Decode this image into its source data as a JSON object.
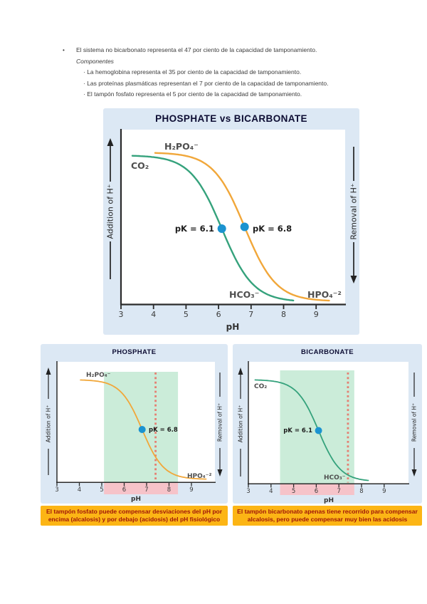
{
  "notes": {
    "intro": "El sistema no bicarbonato representa el 47 por ciento de la capacidad de tamponamiento.",
    "subtitle": "Componentes",
    "items": [
      "La hemoglobina representa el 35 por ciento de la capacidad de tamponamiento.",
      "Las proteínas plasmáticas representan el 7 por ciento de la capacidad de tamponamiento.",
      "El tampón fosfato representa el 5 por ciento de la capacidad de tamponamiento."
    ]
  },
  "chart_data": [
    {
      "id": "phosphate-vs-bicarbonate",
      "type": "line",
      "title": "PHOSPHATE vs BICARBONATE",
      "xlabel": "pH",
      "xlim": [
        3,
        10
      ],
      "x_ticks": [
        3,
        4,
        5,
        6,
        7,
        8,
        9
      ],
      "ylabel_left": "Addition of H⁺",
      "ylabel_right": "Removal of H⁺",
      "ylim": [
        0,
        1
      ],
      "y_axis_type": "qualitative titration axis (no numeric scale)",
      "grid": false,
      "series": [
        {
          "name": "bicarbonate",
          "label_top": "CO₂",
          "label_bottom": "HCO₃⁻",
          "pK": 6.1,
          "pK_label": "pK = 6.1",
          "x_range": [
            3.35,
            8.3
          ],
          "color": "#35a27c",
          "point_color": "#1b93d0"
        },
        {
          "name": "phosphate",
          "label_top": "H₂PO₄⁻",
          "label_bottom": "HPO₄⁻²",
          "pK": 6.8,
          "pK_label": "pK = 6.8",
          "x_range": [
            4.05,
            9.4
          ],
          "color": "#f1a73a",
          "point_color": "#1b93d0"
        }
      ]
    },
    {
      "id": "phosphate",
      "type": "line",
      "title": "PHOSPHATE",
      "xlabel": "pH",
      "xlim": [
        3,
        10
      ],
      "x_ticks": [
        3,
        4,
        5,
        6,
        7,
        8,
        9
      ],
      "ylabel_left": "Addition of H⁺",
      "ylabel_right": "Removal of H⁺",
      "ylim": [
        0,
        1
      ],
      "grid": false,
      "series": [
        {
          "name": "phosphate",
          "label_top": "H₂PO₄⁻",
          "label_bottom": "HPO₄⁻²",
          "pK": 6.8,
          "pK_label": "pK = 6.8",
          "x_range": [
            4.05,
            9.65
          ],
          "color": "#f1a73a",
          "point_color": "#1b93d0"
        }
      ],
      "shaded_region": {
        "from": 5.1,
        "to": 8.4,
        "color": "#cbecd9"
      },
      "axis_band": {
        "from": 5.1,
        "to": 8.4,
        "color": "#f6c3c9"
      },
      "dashed_line": {
        "x": 7.4,
        "color": "#e57f72"
      }
    },
    {
      "id": "bicarbonate",
      "type": "line",
      "title": "BICARBONATE",
      "xlabel": "pH",
      "xlim": [
        3,
        10
      ],
      "x_ticks": [
        3,
        4,
        5,
        6,
        7,
        8,
        9
      ],
      "ylabel_left": "Addition of H⁺",
      "ylabel_right": "Removal of H⁺",
      "ylim": [
        0,
        1
      ],
      "grid": false,
      "series": [
        {
          "name": "bicarbonate",
          "label_top": "CO₂",
          "label_bottom": "HCO₃⁻",
          "pK": 6.1,
          "pK_label": "pK = 6.1",
          "x_range": [
            3.3,
            8.3
          ],
          "color": "#35a27c",
          "point_color": "#1b93d0"
        }
      ],
      "shaded_region": {
        "from": 4.4,
        "to": 7.68,
        "color": "#cbecd9"
      },
      "axis_band": {
        "from": 4.4,
        "to": 7.68,
        "color": "#f6c3c9"
      },
      "dashed_line": {
        "x": 7.4,
        "color": "#e57f72"
      }
    }
  ],
  "captions": {
    "phosphate": "El tampón fosfato puede compensar desviaciones del pH por encima (alcalosis) y por debajo (acidosis) del pH fisiológico",
    "bicarbonate": "El tampón bicarbonato apenas tiene recorrido para compensar alcalosis, pero puede compensar muy bien las acidosis"
  },
  "colors": {
    "panel_bg": "#dce8f4",
    "title": "#0d0d33",
    "curve_green": "#35a27c",
    "curve_orange": "#f1a73a",
    "point_blue": "#1b93d0",
    "region_green": "#cbecd9",
    "band_pink": "#f6c3c9",
    "dashed_pink": "#e57f72",
    "caption_bg": "#fcb515",
    "caption_text": "#9e150a"
  }
}
